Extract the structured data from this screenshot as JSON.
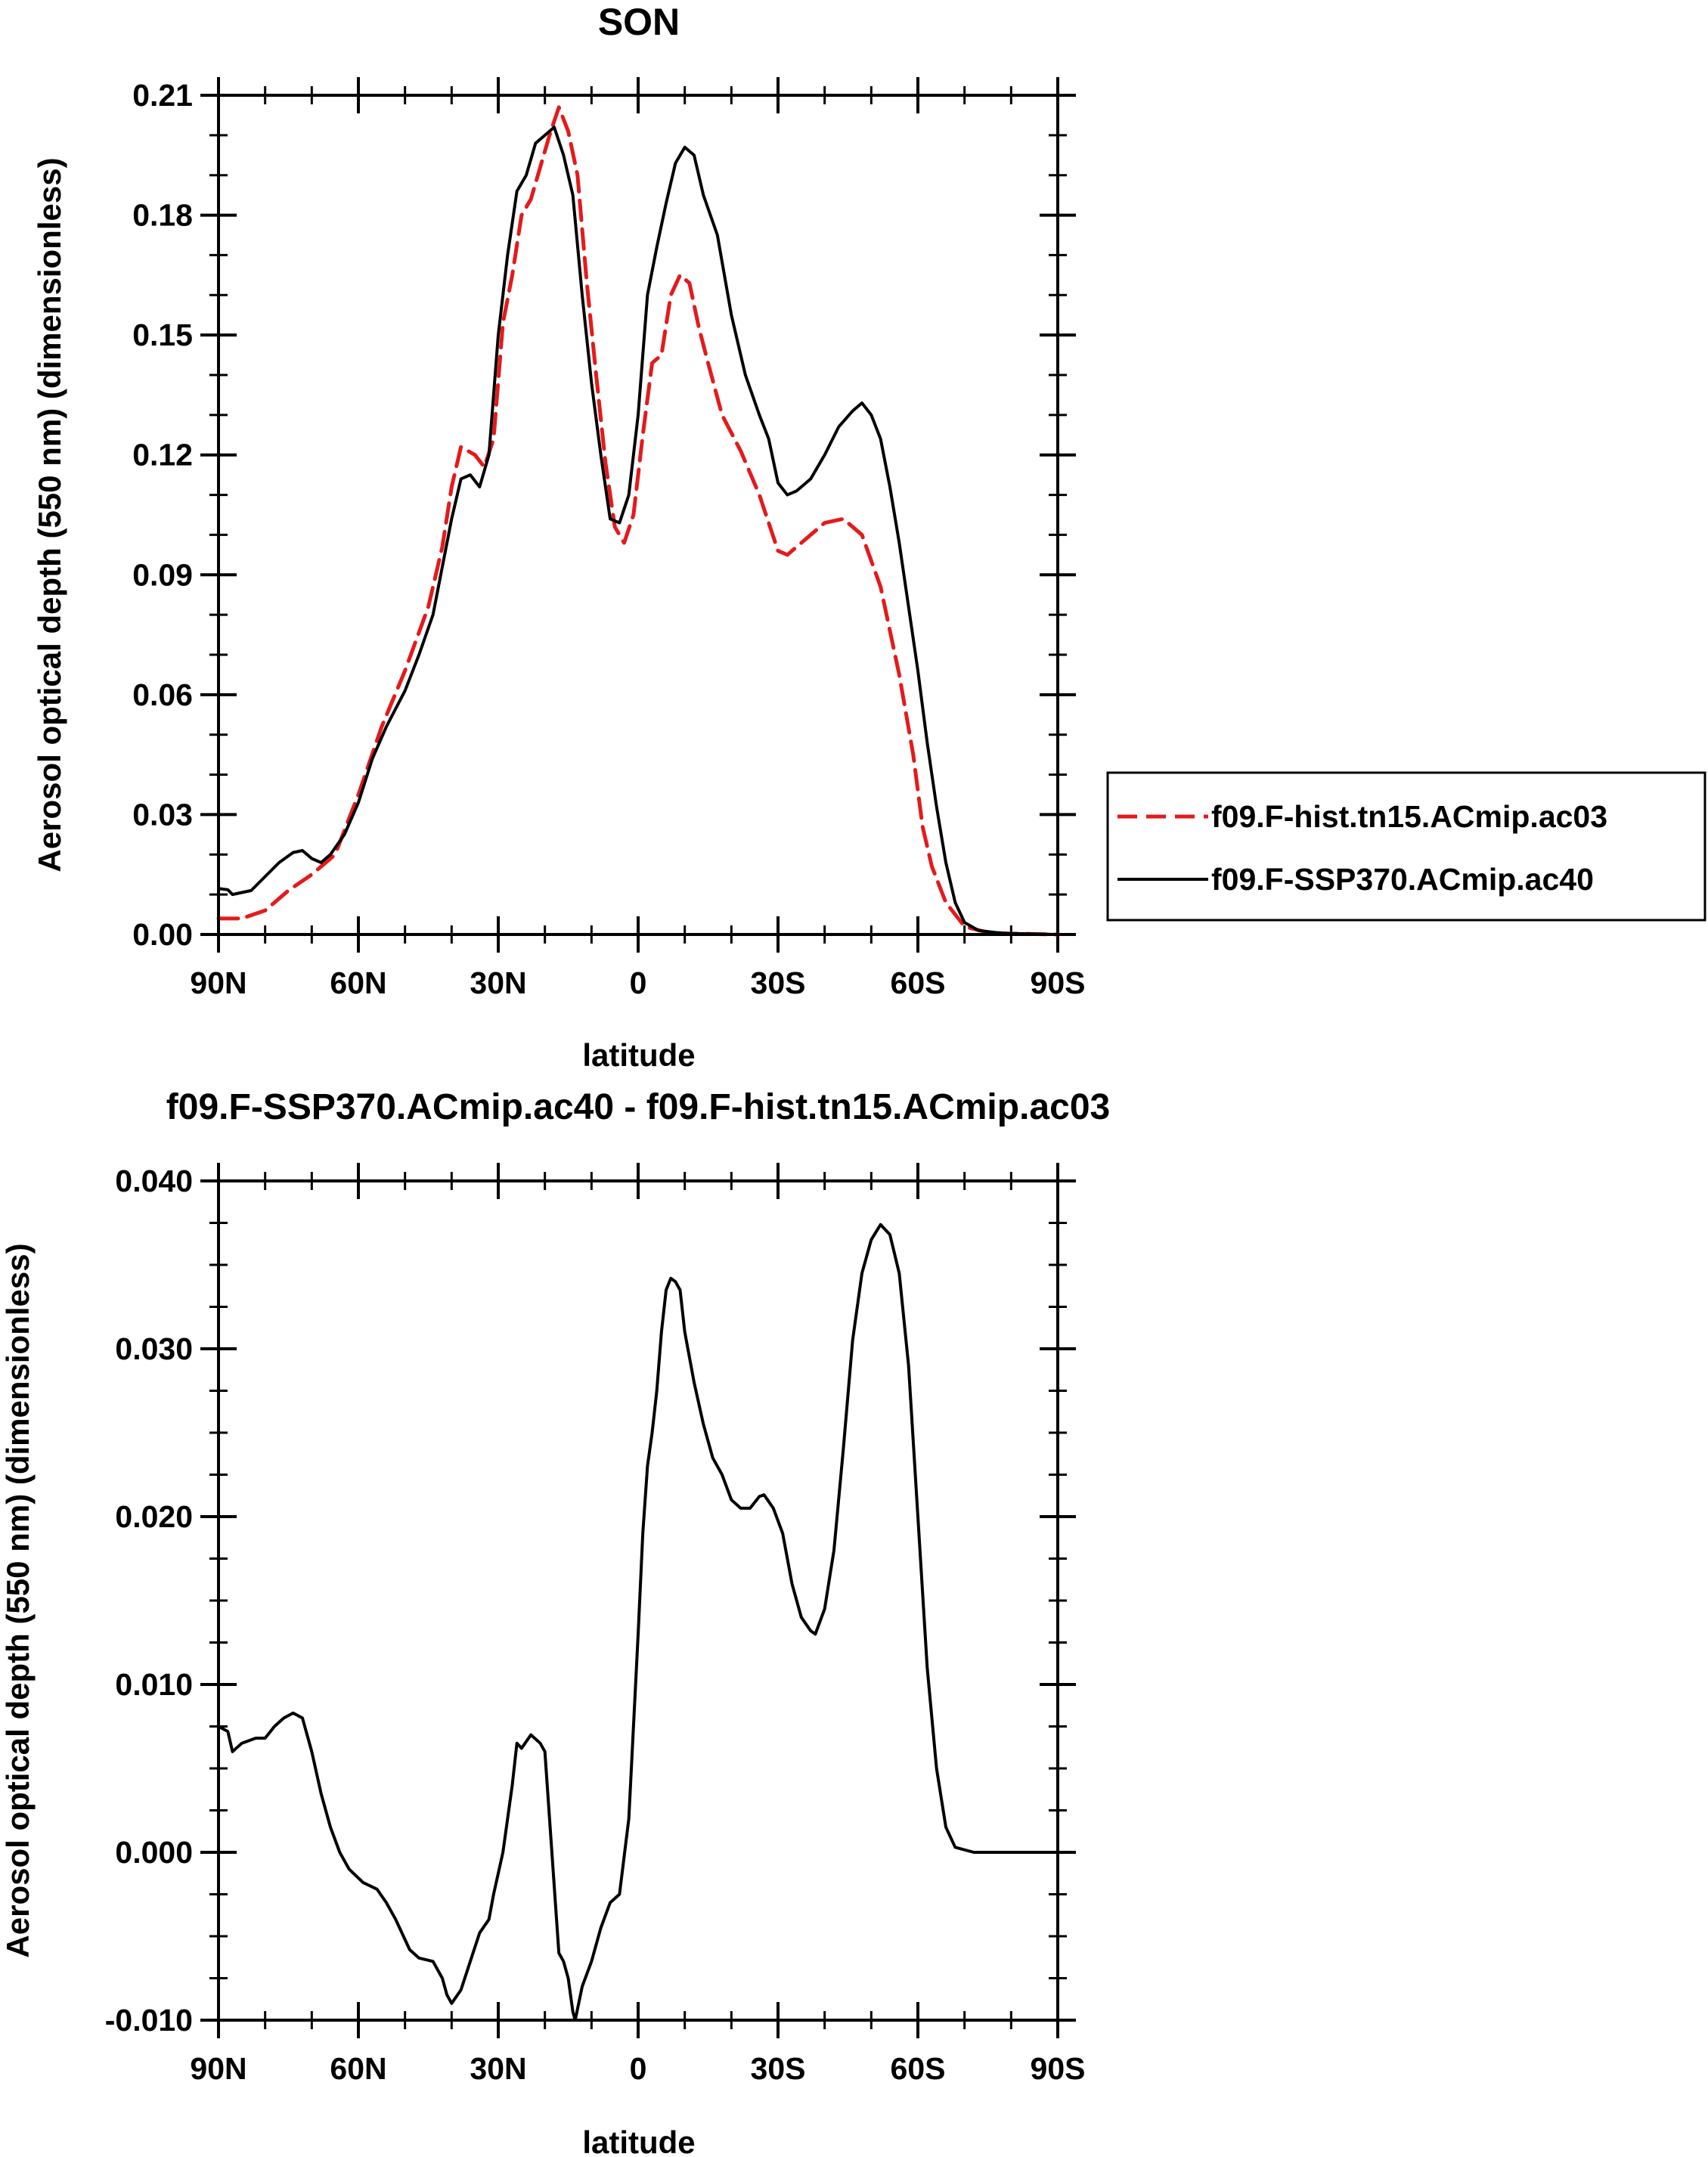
{
  "chart_data": [
    {
      "type": "line",
      "title": "SON",
      "xlabel": "latitude",
      "ylabel": "Aerosol optical depth (550 nm) (dimensionless)",
      "xlim": [
        90,
        -90
      ],
      "ylim": [
        0,
        0.21
      ],
      "x_ticks": [
        90,
        60,
        30,
        0,
        -30,
        -60,
        -90
      ],
      "x_tick_labels": [
        "90N",
        "60N",
        "30N",
        "0",
        "30S",
        "60S",
        "90S"
      ],
      "y_ticks": [
        0,
        0.03,
        0.06,
        0.09,
        0.12,
        0.15,
        0.18,
        0.21
      ],
      "y_tick_labels": [
        "0.00",
        "0.03",
        "0.06",
        "0.09",
        "0.12",
        "0.15",
        "0.18",
        "0.21"
      ],
      "grid": false,
      "legend": "right",
      "series": [
        {
          "name": "f09.F-hist.tn15.ACmip.ac03",
          "color": "#e41a1c",
          "dash": "dashed",
          "points": [
            [
              90,
              0.004
            ],
            [
              85,
              0.004
            ],
            [
              80,
              0.006
            ],
            [
              75,
              0.011
            ],
            [
              70,
              0.015
            ],
            [
              65,
              0.02
            ],
            [
              60,
              0.035
            ],
            [
              55,
              0.052
            ],
            [
              50,
              0.066
            ],
            [
              45,
              0.082
            ],
            [
              42,
              0.097
            ],
            [
              40,
              0.112
            ],
            [
              38,
              0.122
            ],
            [
              35,
              0.12
            ],
            [
              33,
              0.117
            ],
            [
              31,
              0.124
            ],
            [
              29,
              0.153
            ],
            [
              27,
              0.165
            ],
            [
              25,
              0.18
            ],
            [
              23,
              0.184
            ],
            [
              21,
              0.192
            ],
            [
              19,
              0.2
            ],
            [
              17,
              0.207
            ],
            [
              15,
              0.201
            ],
            [
              13,
              0.19
            ],
            [
              11,
              0.163
            ],
            [
              9,
              0.14
            ],
            [
              7,
              0.118
            ],
            [
              5,
              0.102
            ],
            [
              3,
              0.098
            ],
            [
              1,
              0.105
            ],
            [
              -1,
              0.125
            ],
            [
              -3,
              0.143
            ],
            [
              -5,
              0.145
            ],
            [
              -7,
              0.16
            ],
            [
              -9,
              0.165
            ],
            [
              -11,
              0.163
            ],
            [
              -13,
              0.152
            ],
            [
              -15,
              0.143
            ],
            [
              -18,
              0.13
            ],
            [
              -22,
              0.121
            ],
            [
              -26,
              0.11
            ],
            [
              -30,
              0.096
            ],
            [
              -32,
              0.095
            ],
            [
              -35,
              0.098
            ],
            [
              -40,
              0.103
            ],
            [
              -44,
              0.104
            ],
            [
              -48,
              0.1
            ],
            [
              -52,
              0.087
            ],
            [
              -56,
              0.065
            ],
            [
              -59,
              0.045
            ],
            [
              -61,
              0.027
            ],
            [
              -63,
              0.017
            ],
            [
              -66,
              0.008
            ],
            [
              -70,
              0.002
            ],
            [
              -75,
              0.0005
            ],
            [
              -80,
              0.0002
            ],
            [
              -90,
              0.0
            ]
          ]
        },
        {
          "name": "f09.F-SSP370.ACmip.ac40",
          "color": "#000000",
          "dash": "solid",
          "points": [
            [
              90,
              0.0115
            ],
            [
              88,
              0.0112
            ],
            [
              87,
              0.01
            ],
            [
              85,
              0.0105
            ],
            [
              83,
              0.011
            ],
            [
              80,
              0.0145
            ],
            [
              77,
              0.018
            ],
            [
              74,
              0.0205
            ],
            [
              72,
              0.021
            ],
            [
              70,
              0.019
            ],
            [
              68,
              0.018
            ],
            [
              66,
              0.02
            ],
            [
              63,
              0.025
            ],
            [
              60,
              0.033
            ],
            [
              57,
              0.044
            ],
            [
              54,
              0.052
            ],
            [
              50,
              0.061
            ],
            [
              47,
              0.07
            ],
            [
              44,
              0.08
            ],
            [
              42,
              0.092
            ],
            [
              40,
              0.104
            ],
            [
              38,
              0.114
            ],
            [
              36,
              0.115
            ],
            [
              34,
              0.112
            ],
            [
              32,
              0.12
            ],
            [
              30,
              0.15
            ],
            [
              28,
              0.17
            ],
            [
              26,
              0.186
            ],
            [
              24,
              0.19
            ],
            [
              22,
              0.198
            ],
            [
              20,
              0.2
            ],
            [
              18,
              0.202
            ],
            [
              16,
              0.195
            ],
            [
              14,
              0.185
            ],
            [
              12,
              0.16
            ],
            [
              10,
              0.138
            ],
            [
              8,
              0.12
            ],
            [
              6,
              0.104
            ],
            [
              4,
              0.103
            ],
            [
              2,
              0.11
            ],
            [
              0,
              0.13
            ],
            [
              -2,
              0.16
            ],
            [
              -4,
              0.172
            ],
            [
              -6,
              0.183
            ],
            [
              -8,
              0.193
            ],
            [
              -10,
              0.197
            ],
            [
              -12,
              0.195
            ],
            [
              -14,
              0.185
            ],
            [
              -17,
              0.175
            ],
            [
              -20,
              0.155
            ],
            [
              -23,
              0.14
            ],
            [
              -26,
              0.13
            ],
            [
              -28,
              0.124
            ],
            [
              -30,
              0.113
            ],
            [
              -32,
              0.11
            ],
            [
              -34,
              0.111
            ],
            [
              -37,
              0.114
            ],
            [
              -40,
              0.12
            ],
            [
              -43,
              0.127
            ],
            [
              -46,
              0.131
            ],
            [
              -48,
              0.133
            ],
            [
              -50,
              0.13
            ],
            [
              -52,
              0.124
            ],
            [
              -54,
              0.112
            ],
            [
              -56,
              0.098
            ],
            [
              -58,
              0.082
            ],
            [
              -60,
              0.066
            ],
            [
              -62,
              0.048
            ],
            [
              -64,
              0.032
            ],
            [
              -66,
              0.018
            ],
            [
              -68,
              0.008
            ],
            [
              -70,
              0.003
            ],
            [
              -73,
              0.001
            ],
            [
              -78,
              0.0003
            ],
            [
              -90,
              0.0
            ]
          ]
        }
      ]
    },
    {
      "type": "line",
      "title": "f09.F-SSP370.ACmip.ac40 - f09.F-hist.tn15.ACmip.ac03",
      "xlabel": "latitude",
      "ylabel": "Aerosol optical depth (550 nm) (dimensionless)",
      "xlim": [
        90,
        -90
      ],
      "ylim": [
        -0.01,
        0.04
      ],
      "x_ticks": [
        90,
        60,
        30,
        0,
        -30,
        -60,
        -90
      ],
      "x_tick_labels": [
        "90N",
        "60N",
        "30N",
        "0",
        "30S",
        "60S",
        "90S"
      ],
      "y_ticks": [
        -0.01,
        0.0,
        0.01,
        0.02,
        0.03,
        0.04
      ],
      "y_tick_labels": [
        "-0.010",
        "0.000",
        "0.010",
        "0.020",
        "0.030",
        "0.040"
      ],
      "grid": false,
      "series": [
        {
          "color": "#000000",
          "dash": "solid",
          "points": [
            [
              90,
              0.0075
            ],
            [
              88,
              0.0072
            ],
            [
              87,
              0.006
            ],
            [
              85,
              0.0065
            ],
            [
              82,
              0.0068
            ],
            [
              80,
              0.0068
            ],
            [
              78,
              0.0075
            ],
            [
              76,
              0.008
            ],
            [
              74,
              0.0083
            ],
            [
              72,
              0.008
            ],
            [
              70,
              0.006
            ],
            [
              68,
              0.0035
            ],
            [
              66,
              0.0015
            ],
            [
              64,
              0.0
            ],
            [
              62,
              -0.001
            ],
            [
              59,
              -0.0018
            ],
            [
              56,
              -0.0022
            ],
            [
              54,
              -0.003
            ],
            [
              52,
              -0.004
            ],
            [
              49,
              -0.0058
            ],
            [
              47,
              -0.0063
            ],
            [
              44,
              -0.0065
            ],
            [
              42,
              -0.0075
            ],
            [
              41,
              -0.0085
            ],
            [
              40,
              -0.009
            ],
            [
              38,
              -0.0082
            ],
            [
              36,
              -0.0065
            ],
            [
              34,
              -0.0048
            ],
            [
              32,
              -0.004
            ],
            [
              31,
              -0.0025
            ],
            [
              29,
              0.0
            ],
            [
              27,
              0.004
            ],
            [
              26,
              0.0065
            ],
            [
              25,
              0.0062
            ],
            [
              24,
              0.0066
            ],
            [
              23,
              0.007
            ],
            [
              21,
              0.0065
            ],
            [
              20,
              0.006
            ],
            [
              19,
              0.002
            ],
            [
              17,
              -0.006
            ],
            [
              16,
              -0.0065
            ],
            [
              15,
              -0.0075
            ],
            [
              14,
              -0.0095
            ],
            [
              13.5,
              -0.01
            ],
            [
              12,
              -0.008
            ],
            [
              10,
              -0.0065
            ],
            [
              8,
              -0.0045
            ],
            [
              6,
              -0.003
            ],
            [
              4,
              -0.0025
            ],
            [
              2,
              0.002
            ],
            [
              0,
              0.013
            ],
            [
              -1,
              0.019
            ],
            [
              -2,
              0.023
            ],
            [
              -3,
              0.025
            ],
            [
              -4,
              0.0275
            ],
            [
              -5,
              0.031
            ],
            [
              -6,
              0.0335
            ],
            [
              -7,
              0.0342
            ],
            [
              -8,
              0.034
            ],
            [
              -9,
              0.0335
            ],
            [
              -10,
              0.031
            ],
            [
              -12,
              0.028
            ],
            [
              -14,
              0.0255
            ],
            [
              -16,
              0.0235
            ],
            [
              -18,
              0.0225
            ],
            [
              -20,
              0.021
            ],
            [
              -22,
              0.0205
            ],
            [
              -24,
              0.0205
            ],
            [
              -26,
              0.0212
            ],
            [
              -27,
              0.0213
            ],
            [
              -29,
              0.0205
            ],
            [
              -31,
              0.019
            ],
            [
              -33,
              0.016
            ],
            [
              -35,
              0.014
            ],
            [
              -37,
              0.0132
            ],
            [
              -38,
              0.013
            ],
            [
              -40,
              0.0145
            ],
            [
              -42,
              0.018
            ],
            [
              -44,
              0.024
            ],
            [
              -46,
              0.0305
            ],
            [
              -48,
              0.0345
            ],
            [
              -50,
              0.0365
            ],
            [
              -52,
              0.0374
            ],
            [
              -54,
              0.0368
            ],
            [
              -56,
              0.0345
            ],
            [
              -58,
              0.029
            ],
            [
              -60,
              0.02
            ],
            [
              -62,
              0.011
            ],
            [
              -64,
              0.005
            ],
            [
              -66,
              0.0015
            ],
            [
              -68,
              0.0003
            ],
            [
              -72,
              0.0
            ],
            [
              -90,
              0.0
            ]
          ]
        }
      ]
    }
  ]
}
